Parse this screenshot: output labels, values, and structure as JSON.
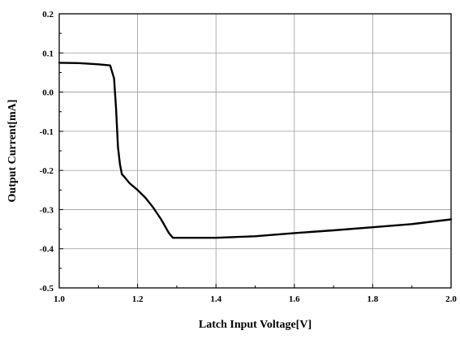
{
  "chart_data": {
    "type": "line",
    "title": "",
    "xlabel": "Latch Input Voltage[V]",
    "ylabel": "Output Current[mA]",
    "xlim": [
      1.0,
      2.0
    ],
    "ylim": [
      -0.5,
      0.2
    ],
    "grid": true,
    "x_ticks": [
      1.0,
      1.2,
      1.4,
      1.6,
      1.8,
      2.0
    ],
    "x_tick_labels": [
      "1.0",
      "1.2",
      "1.4",
      "1.6",
      "1.8",
      "2.0"
    ],
    "y_ticks": [
      -0.5,
      -0.4,
      -0.3,
      -0.2,
      -0.1,
      0.0,
      0.1,
      0.2
    ],
    "y_tick_labels": [
      "-0.5",
      "-0.4",
      "-0.3",
      "-0.2",
      "-0.1",
      "0.0",
      "0.1",
      "0.2"
    ],
    "line_color": "#000000",
    "series": [
      {
        "x": [
          1.0,
          1.05,
          1.1,
          1.13,
          1.14,
          1.145,
          1.15,
          1.155,
          1.16,
          1.165,
          1.18,
          1.2,
          1.22,
          1.24,
          1.26,
          1.28,
          1.29,
          1.3,
          1.4,
          1.5,
          1.6,
          1.7,
          1.8,
          1.9,
          2.0
        ],
        "y": [
          0.075,
          0.074,
          0.071,
          0.068,
          0.035,
          -0.04,
          -0.14,
          -0.185,
          -0.21,
          -0.215,
          -0.233,
          -0.25,
          -0.27,
          -0.295,
          -0.325,
          -0.36,
          -0.372,
          -0.372,
          -0.372,
          -0.368,
          -0.36,
          -0.353,
          -0.345,
          -0.337,
          -0.325
        ]
      }
    ]
  }
}
